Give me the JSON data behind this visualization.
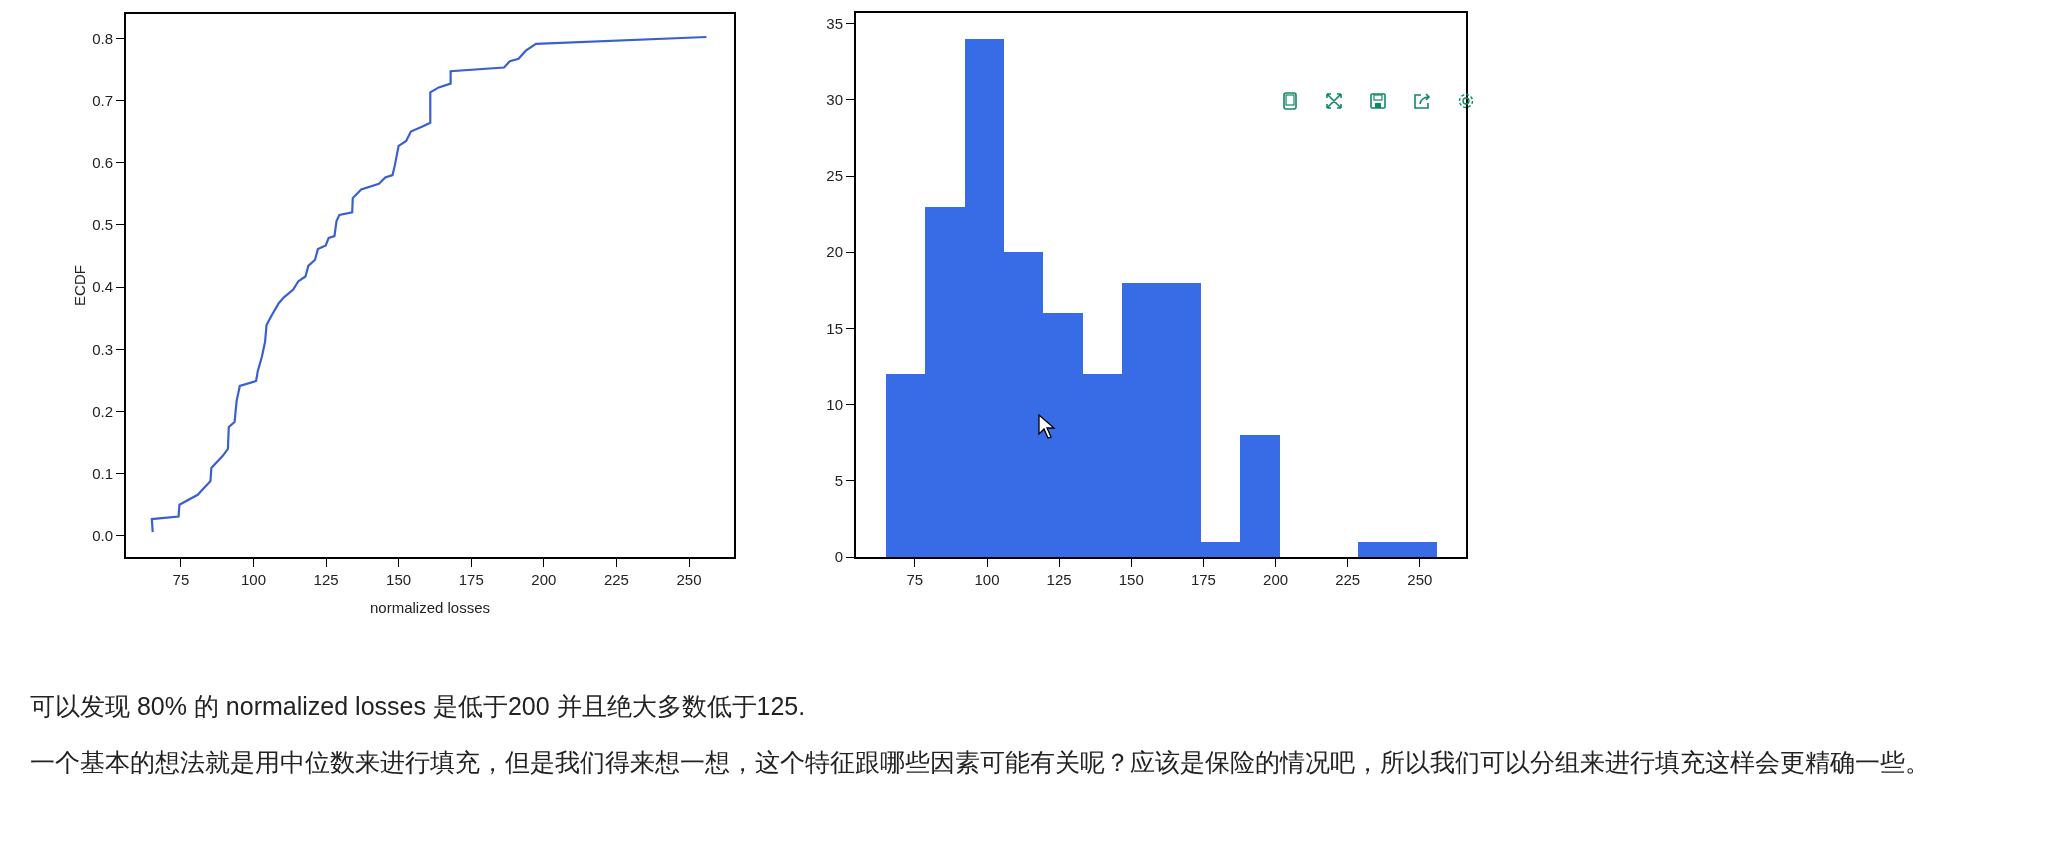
{
  "chart_data": [
    {
      "type": "line",
      "xlabel": "normalized losses",
      "ylabel": "ECDF",
      "xlim": [
        56.1,
        265.5
      ],
      "ylim": [
        -0.034,
        0.839
      ],
      "xticks": [
        75,
        100,
        125,
        150,
        175,
        200,
        225,
        250
      ],
      "yticks": [
        {
          "value": 0,
          "label": "0.0"
        },
        0.1,
        0.2,
        0.3,
        0.4,
        0.5,
        0.6,
        0.7,
        0.8
      ],
      "grid": false,
      "marker": "none",
      "line_style": "solid",
      "series": [
        {
          "color": "#3a5fd0",
          "x": [
            65.3,
            65,
            74.2,
            74.5,
            80.8,
            83.2,
            85.2,
            85.5,
            89.5,
            91.2,
            91.5,
            93.5,
            94.2,
            95.3,
            100.9,
            101.5,
            102.9,
            104,
            104.5,
            106.2,
            108.7,
            110.4,
            113.7,
            115.4,
            117.9,
            118.9,
            121.2,
            122.2,
            124.9,
            125.9,
            127.9,
            128.6,
            129.6,
            134,
            134.2,
            137.1,
            143.2,
            145.4,
            147.9,
            148.7,
            150,
            152.6,
            154.2,
            158.2,
            160.9,
            160.9,
            163.8,
            167.9,
            167.9,
            186.3,
            188.3,
            191.3,
            193.8,
            197.3,
            256
          ],
          "values": [
            0.006,
            0.027,
            0.031,
            0.05,
            0.066,
            0.078,
            0.088,
            0.109,
            0.129,
            0.14,
            0.175,
            0.183,
            0.217,
            0.241,
            0.249,
            0.265,
            0.288,
            0.312,
            0.339,
            0.354,
            0.374,
            0.383,
            0.396,
            0.409,
            0.417,
            0.434,
            0.444,
            0.461,
            0.467,
            0.479,
            0.482,
            0.506,
            0.516,
            0.52,
            0.543,
            0.557,
            0.566,
            0.576,
            0.58,
            0.596,
            0.627,
            0.635,
            0.65,
            0.658,
            0.664,
            0.713,
            0.721,
            0.727,
            0.747,
            0.753,
            0.763,
            0.767,
            0.78,
            0.791,
            0.802
          ]
        }
      ]
    },
    {
      "type": "histogram",
      "xlim": [
        54.6,
        266
      ],
      "ylim": [
        0,
        35.7
      ],
      "xticks": [
        75,
        100,
        125,
        150,
        175,
        200,
        225,
        250
      ],
      "yticks": [
        0,
        5,
        10,
        15,
        20,
        25,
        30,
        35
      ],
      "grid": false,
      "color": "#386ce6",
      "bins": [
        65,
        78.64,
        92.29,
        105.93,
        119.57,
        133.21,
        146.86,
        160.5,
        174.14,
        187.79,
        201.43,
        215.07,
        228.71,
        242.36,
        256
      ],
      "values": [
        12,
        23,
        34,
        20,
        16,
        12,
        18,
        18,
        1,
        8,
        0,
        0,
        1,
        1
      ],
      "annotations": [
        "可以发现 80% 的 normalized losses 是低于200 并且绝大多数低于125.",
        "一个基本的想法就是用中位数来进行填充，但是我们得来想一想，这个特征跟哪些因素可能有关呢？应该是保险的情况吧，所以我们可以分组来进行填充这样会更精确一些。"
      ]
    }
  ]
}
